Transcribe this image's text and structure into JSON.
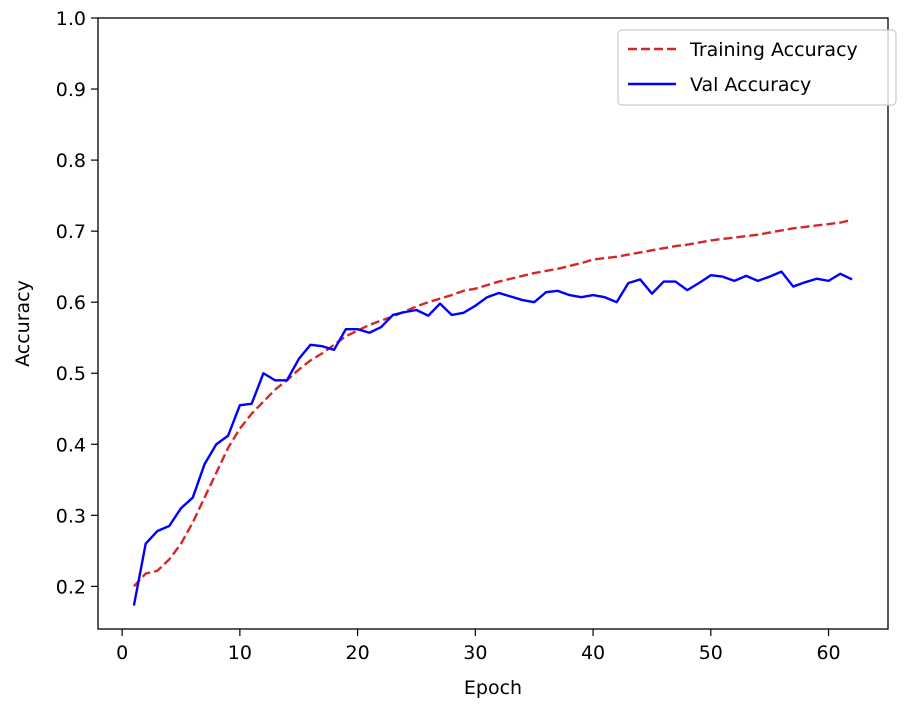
{
  "chart_data": {
    "type": "line",
    "title": "",
    "xlabel": "Epoch",
    "ylabel": "Accuracy",
    "xlim": [
      -2.05,
      65.05
    ],
    "ylim": [
      0.14,
      1.0
    ],
    "xticks": [
      0,
      10,
      20,
      30,
      40,
      50,
      60
    ],
    "yticks": [
      0.2,
      0.3,
      0.4,
      0.5,
      0.6,
      0.7,
      0.8,
      0.9,
      1.0
    ],
    "grid": false,
    "legend_position": "top-right",
    "x": [
      1,
      2,
      3,
      4,
      5,
      6,
      7,
      8,
      9,
      10,
      11,
      12,
      13,
      14,
      15,
      16,
      17,
      18,
      19,
      20,
      21,
      22,
      23,
      24,
      25,
      26,
      27,
      28,
      29,
      30,
      31,
      32,
      33,
      34,
      35,
      36,
      37,
      38,
      39,
      40,
      41,
      42,
      43,
      44,
      45,
      46,
      47,
      48,
      49,
      50,
      51,
      52,
      53,
      54,
      55,
      56,
      57,
      58,
      59,
      60,
      61,
      62
    ],
    "series": [
      {
        "name": "Training Accuracy",
        "color": "#d62728",
        "style": "dashed",
        "values": [
          0.2,
          0.218,
          0.222,
          0.238,
          0.26,
          0.29,
          0.325,
          0.36,
          0.395,
          0.422,
          0.443,
          0.46,
          0.477,
          0.49,
          0.505,
          0.518,
          0.528,
          0.54,
          0.552,
          0.56,
          0.568,
          0.574,
          0.58,
          0.587,
          0.594,
          0.6,
          0.605,
          0.61,
          0.616,
          0.619,
          0.624,
          0.629,
          0.633,
          0.637,
          0.641,
          0.644,
          0.647,
          0.651,
          0.655,
          0.66,
          0.662,
          0.664,
          0.667,
          0.67,
          0.673,
          0.676,
          0.679,
          0.681,
          0.684,
          0.687,
          0.689,
          0.691,
          0.693,
          0.695,
          0.698,
          0.701,
          0.704,
          0.706,
          0.708,
          0.71,
          0.712,
          0.716
        ]
      },
      {
        "name": "Val Accuracy",
        "color": "#0000ff",
        "style": "solid",
        "values": [
          0.173,
          0.26,
          0.278,
          0.285,
          0.31,
          0.325,
          0.372,
          0.4,
          0.412,
          0.455,
          0.457,
          0.5,
          0.49,
          0.49,
          0.52,
          0.54,
          0.538,
          0.533,
          0.562,
          0.562,
          0.557,
          0.565,
          0.582,
          0.586,
          0.589,
          0.581,
          0.598,
          0.582,
          0.585,
          0.595,
          0.607,
          0.613,
          0.608,
          0.603,
          0.6,
          0.614,
          0.616,
          0.61,
          0.607,
          0.61,
          0.607,
          0.6,
          0.627,
          0.632,
          0.612,
          0.629,
          0.629,
          0.617,
          0.627,
          0.638,
          0.636,
          0.63,
          0.637,
          0.63,
          0.636,
          0.643,
          0.622,
          0.628,
          0.633,
          0.63,
          0.64,
          0.632
        ]
      }
    ]
  }
}
